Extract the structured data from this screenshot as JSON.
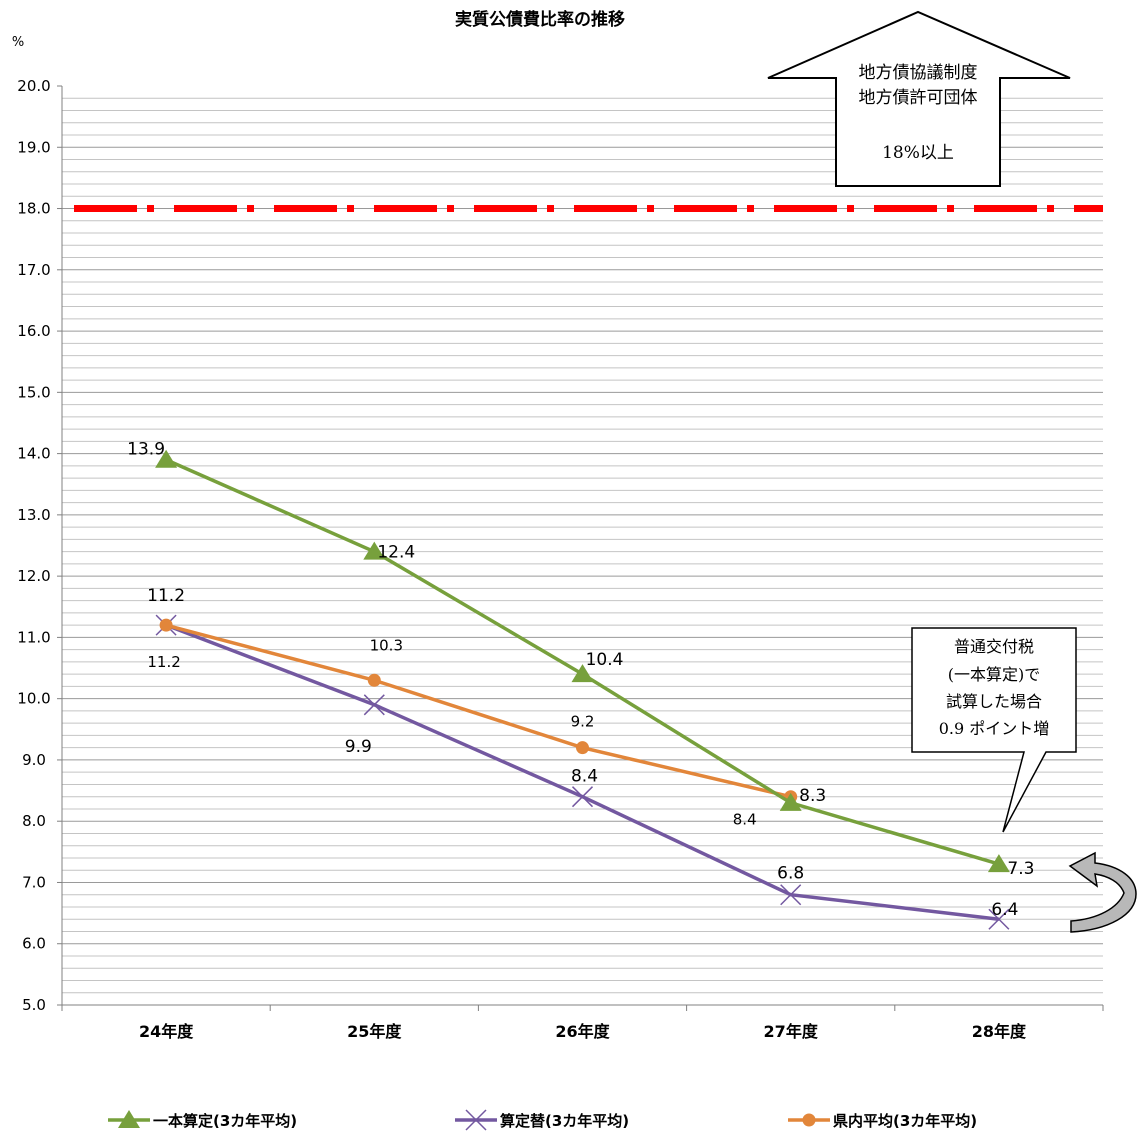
{
  "chart_data": {
    "type": "line",
    "title": "実質公債費比率の推移",
    "ylabel": "%",
    "ylim": [
      5.0,
      20.0
    ],
    "ytick_step": 1.0,
    "yticks": [
      "20.0",
      "19.0",
      "18.0",
      "17.0",
      "16.0",
      "15.0",
      "14.0",
      "13.0",
      "12.0",
      "11.0",
      "10.0",
      "9.0",
      "8.0",
      "7.0",
      "6.0",
      "5.0"
    ],
    "minor_grid_step": 0.2,
    "grid": true,
    "categories": [
      "24年度",
      "25年度",
      "26年度",
      "27年度",
      "28年度"
    ],
    "series": [
      {
        "name": "一本算定(3カ年平均)",
        "color": "#77a03c",
        "marker": "triangle",
        "values": [
          13.9,
          12.4,
          10.4,
          8.3,
          7.3
        ],
        "labels": [
          "13.9",
          "12.4",
          "10.4",
          "8.3",
          "7.3"
        ]
      },
      {
        "name": "算定替(3カ年平均)",
        "color": "#7358a0",
        "marker": "x",
        "values": [
          11.2,
          9.9,
          8.4,
          6.8,
          6.4
        ],
        "labels": [
          "11.2",
          "9.9",
          "8.4",
          "6.8",
          "6.4"
        ]
      },
      {
        "name": "県内平均(3カ年平均)",
        "color": "#e2863a",
        "marker": "circle",
        "values": [
          11.2,
          10.3,
          9.2,
          8.4,
          null
        ],
        "labels": [
          "11.2",
          "10.3",
          "9.2",
          "8.4",
          ""
        ]
      }
    ],
    "threshold": {
      "value": 18.0,
      "color": "#ff0000"
    },
    "legend_position": "bottom",
    "annotations": {
      "threshold_callout": [
        "地方債協議制度",
        "地方債許可団体",
        "",
        "18%以上"
      ],
      "bubble_callout": [
        "普通交付税",
        "(一本算定)で",
        "試算した場合",
        "0.9 ポイント増"
      ]
    }
  }
}
